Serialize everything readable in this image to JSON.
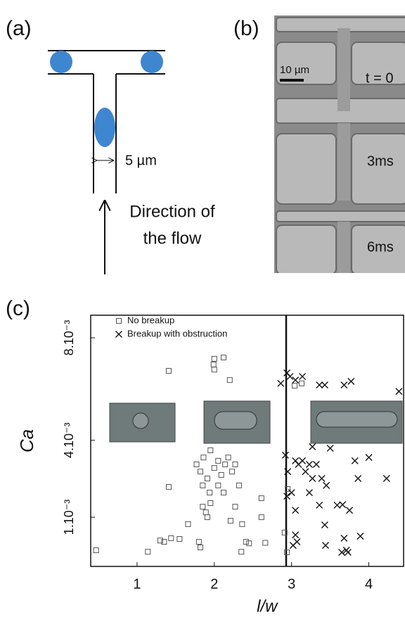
{
  "panel_a": {
    "label": "(a)",
    "width_label": "5 µm",
    "flow_label": [
      "Direction of",
      "the flow"
    ]
  },
  "panel_b": {
    "label": "(b)",
    "scale_label": "10 µm",
    "times": [
      "t = 0",
      "3ms",
      "6ms"
    ]
  },
  "chart_data": {
    "type": "scatter",
    "panel_label": "(c)",
    "xlabel": "l/w",
    "ylabel": "Ca",
    "xlim": [
      0.4,
      4.45
    ],
    "ylim": [
      -0.92,
      8.88
    ],
    "xticks": [
      1,
      2,
      3,
      4
    ],
    "yticks": [
      {
        "value": 1,
        "label": "1.10⁻³"
      },
      {
        "value": 4,
        "label": "4.10⁻³"
      },
      {
        "value": 8,
        "label": "8.10⁻³"
      }
    ],
    "vline": 2.93,
    "legend": "upper left",
    "series": [
      {
        "name": "No breakup",
        "marker": "square",
        "color": "#555555",
        "x": [
          0.47,
          1.14,
          1.3,
          1.35,
          1.44,
          1.55,
          1.66,
          1.8,
          1.82,
          1.85,
          1.89,
          1.91,
          1.41,
          2.0,
          1.99,
          2.0,
          2.12,
          2.2,
          1.41,
          1.77,
          1.82,
          1.86,
          1.91,
          1.95,
          2.0,
          2.05,
          2.09,
          2.14,
          2.18,
          2.23,
          2.27,
          2.32,
          1.85,
          1.94,
          2.05,
          2.12,
          1.95,
          2.36,
          2.41,
          2.45,
          2.35,
          2.61,
          2.61,
          2.66,
          2.91,
          2.94,
          2.95,
          3.04,
          3.13,
          2.21,
          2.27
        ],
        "values": [
          -0.29,
          -0.35,
          0.09,
          0.04,
          0.18,
          0.15,
          0.73,
          0.04,
          -0.18,
          1.41,
          1.19,
          1.0,
          2.18,
          7.18,
          6.96,
          6.76,
          7.23,
          6.35,
          6.71,
          3.06,
          2.78,
          3.33,
          2.51,
          3.61,
          2.92,
          3.2,
          2.65,
          3.06,
          3.33,
          2.78,
          3.06,
          2.24,
          2.24,
          1.96,
          2.24,
          1.96,
          1.55,
          0.73,
          0.04,
          -0.02,
          -0.35,
          1.74,
          1.0,
          0.0,
          0.4,
          -0.37,
          2.1,
          6.13,
          6.22,
          0.86,
          1.41
        ]
      },
      {
        "name": "Breakup with obstruction",
        "marker": "cross",
        "color": "#111111",
        "x": [
          2.94,
          2.98,
          3.05,
          2.86,
          3.14,
          3.36,
          3.43,
          3.68,
          3.77,
          4.39,
          2.92,
          3.05,
          3.09,
          3.14,
          3.18,
          3.23,
          3.27,
          3.32,
          3.39,
          3.45,
          3.27,
          3.5,
          3.23,
          2.95,
          3.0,
          3.05,
          2.94,
          3.05,
          3.07,
          3.02,
          3.36,
          3.59,
          3.66,
          3.75,
          3.44,
          3.68,
          3.71,
          3.65,
          3.73,
          3.89,
          3.82,
          4.0,
          3.86,
          4.23,
          3.43
        ],
        "values": [
          6.63,
          6.49,
          6.35,
          6.22,
          6.49,
          6.16,
          6.16,
          6.16,
          6.3,
          5.91,
          3.42,
          3.2,
          3.06,
          3.2,
          2.78,
          3.06,
          2.51,
          3.06,
          2.51,
          2.24,
          3.75,
          3.69,
          1.96,
          2.78,
          1.96,
          1.27,
          1.82,
          0.31,
          0.04,
          -0.1,
          1.47,
          1.47,
          1.49,
          1.27,
          -0.1,
          0.18,
          -0.29,
          -0.37,
          -0.37,
          0.26,
          3.2,
          3.33,
          2.51,
          2.51,
          0.7
        ]
      }
    ]
  }
}
